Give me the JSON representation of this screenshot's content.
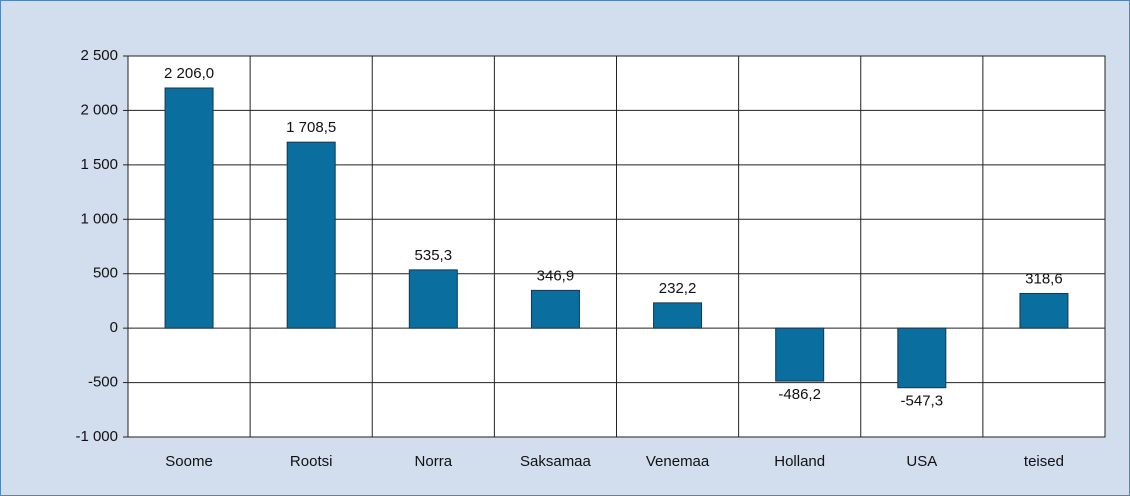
{
  "chart_data": {
    "type": "bar",
    "categories": [
      "Soome",
      "Rootsi",
      "Norra",
      "Saksamaa",
      "Venemaa",
      "Holland",
      "USA",
      "teised"
    ],
    "values": [
      2206.0,
      1708.5,
      535.3,
      346.9,
      232.2,
      -486.2,
      -547.3,
      318.6
    ],
    "value_labels": [
      "2 206,0",
      "1 708,5",
      "535,3",
      "346,9",
      "232,2",
      "-486,2",
      "-547,3",
      "318,6"
    ],
    "color": "#0a6e9f",
    "ylim": [
      -1000,
      2500
    ],
    "yticks": [
      {
        "value": -1000,
        "label": "-1 000"
      },
      -500,
      0,
      500,
      {
        "value": 1000,
        "label": "1 000"
      },
      {
        "value": 1500,
        "label": "1 500"
      },
      {
        "value": 2000,
        "label": "2 000"
      },
      {
        "value": 2500,
        "label": "2 500"
      }
    ],
    "grid": true
  }
}
